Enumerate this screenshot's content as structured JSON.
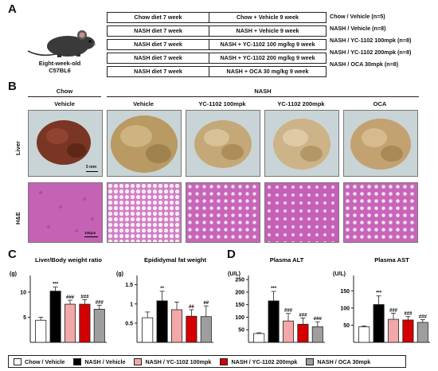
{
  "panels": {
    "a": "A",
    "b": "B",
    "c": "C",
    "d": "D"
  },
  "mouse": {
    "line1": "Eight-week-old",
    "line2": "C57BL6"
  },
  "design": [
    {
      "diet": "Chow diet 7 week",
      "treatment": "Chow + Vehicle 9 week",
      "group": "Chow / Vehicle (n=5)"
    },
    {
      "diet": "NASH diet 7 week",
      "treatment": "NASH + Vehicle 9 week",
      "group": "NASH / Vehicle (n=8)"
    },
    {
      "diet": "NASH diet 7 week",
      "treatment": "NASH + YC-1102 100 mg/kg 9 week",
      "group": "NASH / YC-1102 100mpk (n=8)"
    },
    {
      "diet": "NASH diet 7 week",
      "treatment": "NASH + YC-1102 200 mg/kg 9 week",
      "group": "NASH / YC-1102 200mpk (n=8)"
    },
    {
      "diet": "NASH diet 7 week",
      "treatment": "NASH + OCA 30 mg/kg 9 week",
      "group": "NASH / OCA 30mpk (n=8)"
    }
  ],
  "histology": {
    "chow_header": "Chow",
    "nash_header": "NASH",
    "columns": [
      "Vehicle",
      "Vehicle",
      "YC-1102 100mpk",
      "YC-1102 200mpk",
      "OCA"
    ],
    "row_liver": "Liver",
    "row_he": "H&E",
    "scale_liver": "5 mm",
    "scale_he": "100μm"
  },
  "colors": {
    "chow": "#ffffff",
    "nash": "#000000",
    "yc100": "#f2a8a8",
    "yc200": "#d40000",
    "oca": "#9e9e9e"
  },
  "chart_data": [
    {
      "type": "bar",
      "title": "Liver/Body weight ratio",
      "ylabel": "(g)",
      "ylim": [
        0,
        13
      ],
      "yticks": [
        5,
        10
      ],
      "categories": [
        "Chow / Vehicle",
        "NASH / Vehicle",
        "NASH / YC-1102 100mpk",
        "NASH / YC-1102 200mpk",
        "NASH / OCA 30mpk"
      ],
      "values": [
        4.4,
        10.2,
        7.6,
        7.6,
        6.6
      ],
      "errors": [
        0.6,
        0.8,
        0.8,
        0.9,
        0.8
      ],
      "annotations": [
        "",
        "***",
        "###",
        "###",
        "###"
      ]
    },
    {
      "type": "bar",
      "title": "Epididymal fat weight",
      "ylabel": "(g)",
      "ylim": [
        0,
        1.7
      ],
      "yticks": [
        0.5,
        1.0,
        1.5
      ],
      "categories": [
        "Chow / Vehicle",
        "NASH / Vehicle",
        "NASH / YC-1102 100mpk",
        "NASH / YC-1102 200mpk",
        "NASH / OCA 30mpk"
      ],
      "values": [
        0.64,
        1.08,
        0.85,
        0.68,
        0.67
      ],
      "errors": [
        0.15,
        0.25,
        0.2,
        0.17,
        0.28
      ],
      "annotations": [
        "",
        "**",
        "",
        "##",
        "##"
      ]
    },
    {
      "type": "bar",
      "title": "Plasma ALT",
      "ylabel": "(U/L)",
      "ylim": [
        0,
        260
      ],
      "yticks": [
        50,
        100,
        150,
        200,
        250
      ],
      "categories": [
        "Chow / Vehicle",
        "NASH / Vehicle",
        "NASH / YC-1102 100mpk",
        "NASH / YC-1102 200mpk",
        "NASH / OCA 30mpk"
      ],
      "values": [
        35,
        165,
        85,
        72,
        62
      ],
      "errors": [
        3,
        38,
        30,
        25,
        20
      ],
      "annotations": [
        "",
        "***",
        "###",
        "###",
        "###"
      ]
    },
    {
      "type": "bar",
      "title": "Plasma AST",
      "ylabel": "(U/L)",
      "ylim": [
        0,
        190
      ],
      "yticks": [
        50,
        100,
        150
      ],
      "categories": [
        "Chow / Vehicle",
        "NASH / Vehicle",
        "NASH / YC-1102 100mpk",
        "NASH / YC-1102 200mpk",
        "NASH / OCA 30mpk"
      ],
      "values": [
        45,
        110,
        67,
        65,
        58
      ],
      "errors": [
        3,
        25,
        18,
        10,
        8
      ],
      "annotations": [
        "",
        "***",
        "###",
        "###",
        "###"
      ]
    }
  ],
  "legend": [
    "Chow / Vehicle",
    "NASH / Vehicle",
    "NASH / YC-1102 100mpk",
    "NASH / YC-1102 200mpk",
    "NASH / OCA 30mpk"
  ]
}
